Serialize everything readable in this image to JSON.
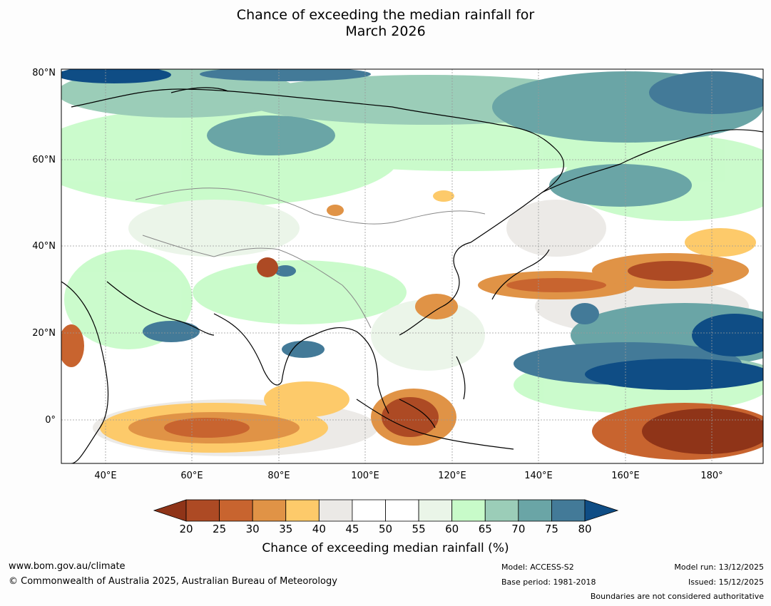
{
  "title_line1": "Chance of exceeding the median rainfall for",
  "title_line2": "March 2026",
  "map": {
    "lat_labels": [
      "80°N",
      "60°N",
      "40°N",
      "20°N",
      "0°"
    ],
    "lon_labels": [
      "40°E",
      "60°E",
      "80°E",
      "100°E",
      "120°E",
      "140°E",
      "160°E",
      "180°"
    ],
    "extent": {
      "lon_min": 30,
      "lon_max": 195,
      "lat_min": -10,
      "lat_max": 80
    }
  },
  "colorbar": {
    "ticks": [
      "20",
      "25",
      "30",
      "35",
      "40",
      "45",
      "50",
      "55",
      "60",
      "65",
      "70",
      "75",
      "80"
    ],
    "colors": [
      "#8f3418",
      "#ad4a24",
      "#c8642f",
      "#e09346",
      "#fdca6a",
      "#ebe9e6",
      "#ffffff",
      "#ffffff",
      "#eaf5e8",
      "#c8fbc9",
      "#9bcdb8",
      "#6aa5a6",
      "#437a98",
      "#0f4d85"
    ],
    "label": "Chance of exceeding median rainfall (%)"
  },
  "footer": {
    "url": "www.bom.gov.au/climate",
    "copyright": "© Commonwealth of Australia 2025, Australian Bureau of Meteorology",
    "model": "Model: ACCESS-S2",
    "base_period": "Base period: 1981-2018",
    "model_run": "Model run: 13/12/2025",
    "issued": "Issued: 15/12/2025",
    "boundaries": "Boundaries are not considered authoritative"
  }
}
